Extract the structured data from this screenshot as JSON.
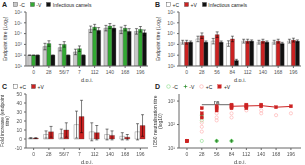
{
  "chart_data": [
    {
      "type": "bar",
      "title": "A",
      "x_label": "d.p.i.",
      "y_label": "Endpoint titre (Log₂)",
      "categories": [
        "0",
        "28",
        "56/7",
        "7",
        "112",
        "140",
        "168",
        "196"
      ],
      "series": [
        {
          "name": "-C",
          "color": "#c8c8c8",
          "values": [
            100,
            630,
            500,
            200,
            25000,
            32000,
            20000,
            16000
          ],
          "errors_minus": [
            0,
            315,
            250,
            88.88888888888889,
            12500,
            14222.222222222223,
            10000,
            7111.111111111111
          ],
          "errors_plus": [
            0,
            630,
            500,
            160,
            25000,
            25600,
            20000,
            12800
          ]
        },
        {
          "name": "-V",
          "color": "#33aa33",
          "values": [
            100,
            1200,
            1000,
            400,
            40000,
            50000,
            32000,
            25000
          ],
          "errors_minus": [
            0,
            533.3333333333334,
            444.44444444444446,
            177.77777777777777,
            17777.777777777777,
            20588.235294117647,
            14222.222222222223,
            11111.111111111111
          ],
          "errors_plus": [
            0,
            960,
            800,
            320,
            32000,
            35000,
            25600,
            20000
          ]
        },
        {
          "name": "Infectious camels",
          "color": "#111111",
          "values": [
            100,
            100,
            100,
            100,
            20000,
            32000,
            16000,
            12000
          ],
          "errors_minus": [
            0,
            0,
            0,
            0,
            8888.888888888889,
            14222.222222222223,
            7111.111111111111,
            5333.333333333333
          ],
          "errors_plus": [
            0,
            0,
            0,
            0,
            16000,
            25600,
            12800,
            9600
          ]
        }
      ],
      "log": "y",
      "ylim": [
        10,
        1000000
      ],
      "yticks": [
        {
          "value": 10,
          "label": "10¹"
        },
        {
          "value": 100,
          "label": "10²"
        },
        {
          "value": 1000,
          "label": "10³"
        },
        {
          "value": 10000,
          "label": "10⁴"
        },
        {
          "value": 100000,
          "label": "10⁵"
        },
        {
          "value": 1000000,
          "label": "10⁶"
        }
      ],
      "legend": "top",
      "grid": false
    },
    {
      "type": "bar",
      "title": "B",
      "x_label": "d.p.i.",
      "y_label": "Endpoint titre (Log₂)",
      "categories": [
        "0",
        "28",
        "56",
        "84",
        "112",
        "140",
        "168",
        "196"
      ],
      "series": [
        {
          "name": "+C",
          "color": "#ffffff",
          "values": [
            1600,
            3200,
            2000,
            1200,
            2000,
            1600,
            1600,
            2000
          ],
          "errors_minus": [
            533.3333333333334,
            1422.2222222222222,
            888.8888888888889,
            533.3333333333334,
            666.6666666666667,
            533.3333333333334,
            533.3333333333334,
            666.6666666666667
          ],
          "errors_plus": [
            800,
            2560,
            1600,
            960,
            1000,
            800,
            800,
            1000
          ]
        },
        {
          "name": "+V",
          "color": "#cc2222",
          "values": [
            1600,
            6400,
            8000,
            3200,
            2000,
            2000,
            2000,
            2500
          ],
          "errors_minus": [
            533.3333333333334,
            2844.4444444444443,
            3555.5555555555557,
            1422.2222222222222,
            666.6666666666667,
            666.6666666666667,
            666.6666666666667,
            833.3333333333334
          ],
          "errors_plus": [
            800,
            5120,
            6400,
            2560,
            1000,
            1000,
            1000,
            1250
          ]
        },
        {
          "name": "Infectious camels",
          "color": "#111111",
          "values": [
            1600,
            1600,
            1600,
            32,
            2000,
            1600,
            1200,
            2000
          ],
          "errors_minus": [
            369.2307692307692,
            369.2307692307692,
            369.2307692307692,
            7.384615384615384,
            461.53846153846155,
            369.2307692307692,
            276.9230769230769,
            461.53846153846155
          ],
          "errors_plus": [
            480,
            480,
            480,
            9.6,
            600,
            480,
            360,
            600
          ]
        }
      ],
      "log": "y",
      "ylim": [
        10,
        1000000
      ],
      "yticks": [
        {
          "value": 10,
          "label": "10¹"
        },
        {
          "value": 100,
          "label": "10²"
        },
        {
          "value": 1000,
          "label": "10³"
        },
        {
          "value": 10000,
          "label": "10⁴"
        },
        {
          "value": 100000,
          "label": "10⁵"
        },
        {
          "value": 1000000,
          "label": "10⁶"
        }
      ],
      "legend": "top",
      "grid": false
    },
    {
      "type": "bar",
      "title": "C",
      "x_label": "d.p.i.",
      "y_label": "Fold increase (endpoint titre)",
      "categories": [
        "0",
        "28",
        "56/7",
        "7",
        "112",
        "140",
        "168",
        "196"
      ],
      "series": [
        {
          "name": "+C",
          "color": "#ffffff",
          "values": [
            1,
            5,
            6,
            16,
            8,
            5,
            3,
            8
          ],
          "errors": [
            0.5,
            4,
            5,
            15,
            10,
            6,
            4,
            9
          ]
        },
        {
          "name": "+V",
          "color": "#cc2222",
          "values": [
            1,
            8,
            10,
            25,
            7,
            4,
            2,
            15
          ],
          "errors": [
            0.5,
            6,
            8,
            18,
            8,
            5,
            3,
            12
          ]
        }
      ],
      "ylim": [
        -10,
        50
      ],
      "yticks": [
        -10,
        0,
        10,
        20,
        30,
        40,
        50
      ],
      "legend": "top",
      "grid": false
    },
    {
      "type": "scatter",
      "title": "D",
      "x_label": "d.p.i.",
      "y_label": "ID50 neutralisation titre (log10)",
      "series": [
        {
          "name": "-C",
          "color": "#88dd88",
          "marker": "circle-open",
          "x": [
            0,
            0,
            0,
            28,
            28,
            28,
            56,
            56,
            84,
            84
          ],
          "values": [
            20,
            20,
            20,
            150,
            250,
            20,
            20,
            20,
            20,
            20
          ]
        },
        {
          "name": "-V",
          "color": "#228822",
          "marker": "plus",
          "x": [
            0,
            0,
            0,
            28,
            28,
            56,
            56,
            84,
            84
          ],
          "values": [
            20,
            20,
            20,
            200,
            250,
            20,
            20,
            20,
            20
          ]
        },
        {
          "name": "+C",
          "color": "#ffaaaa",
          "marker": "circle-open",
          "x": [
            0,
            0,
            0,
            28,
            28,
            28,
            56,
            56,
            56,
            84,
            84,
            84,
            112,
            112,
            140,
            140,
            168,
            196
          ],
          "values": [
            20,
            20,
            20,
            80,
            120,
            50,
            200,
            300,
            150,
            300,
            500,
            200,
            400,
            600,
            300,
            400,
            250,
            300
          ]
        },
        {
          "name": "+V",
          "color": "#cc2222",
          "marker": "square",
          "x": [
            0,
            0,
            0,
            28,
            28,
            28,
            56,
            56,
            56,
            84,
            84,
            84,
            112,
            112,
            112,
            140,
            140,
            168,
            196
          ],
          "values": [
            20,
            20,
            20,
            300,
            500,
            200,
            500,
            600,
            400,
            600,
            700,
            500,
            600,
            700,
            500,
            600,
            700,
            550,
            600
          ]
        },
        {
          "type": "line",
          "color": "#cc2222",
          "x": [
            84,
            112,
            140,
            168,
            196
          ],
          "values": [
            600,
            620,
            640,
            550,
            590
          ]
        }
      ],
      "annotations": [
        {
          "text": "ns",
          "x": 56,
          "y": 735,
          "bracket": {
            "x": [
              28,
              84
            ],
            "y": 700
          }
        }
      ],
      "log": "y",
      "xlim": [
        -15,
        215
      ],
      "xticks": [
        0,
        28,
        56,
        84,
        112,
        140,
        168,
        196
      ],
      "ylim": [
        10,
        2000
      ],
      "yticks": [
        {
          "value": 10,
          "label": "10¹"
        },
        {
          "value": 100,
          "label": "10²"
        },
        {
          "value": 1000,
          "label": "10³"
        }
      ],
      "legend": "top",
      "grid": false
    }
  ]
}
